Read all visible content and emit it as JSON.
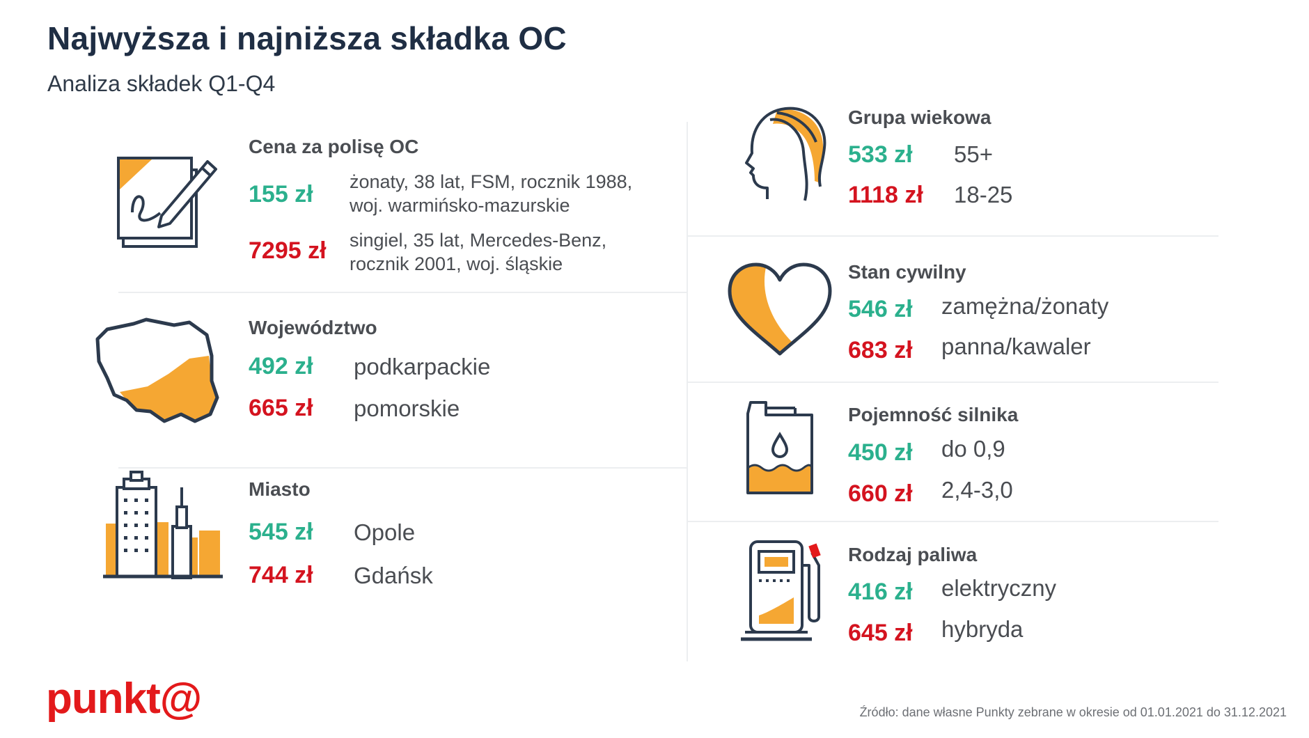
{
  "header": {
    "title": "Najwyższa i najniższa składka OC",
    "subtitle": "Analiza składek Q1-Q4"
  },
  "colors": {
    "accent": "#f5a733",
    "low": "#2bb08d",
    "high": "#d4131f",
    "outline": "#2c3a4d",
    "brand": "#e3191b"
  },
  "left": {
    "price": {
      "title": "Cena za polisę OC",
      "low_value": "155 zł",
      "low_desc_1": "żonaty, 38 lat, FSM, rocznik 1988,",
      "low_desc_2": "woj. warmińsko-mazurskie",
      "high_value": "7295 zł",
      "high_desc_1": "singiel, 35 lat, Mercedes-Benz,",
      "high_desc_2": "rocznik 2001, woj. śląskie",
      "icon": "contract-signature-icon"
    },
    "voivodeship": {
      "title": "Województwo",
      "low_value": "492 zł",
      "low_desc": "podkarpackie",
      "high_value": "665 zł",
      "high_desc": "pomorskie",
      "icon": "poland-map-icon"
    },
    "city": {
      "title": "Miasto",
      "low_value": "545 zł",
      "low_desc": "Opole",
      "high_value": "744 zł",
      "high_desc": "Gdańsk",
      "icon": "city-buildings-icon"
    }
  },
  "right": {
    "age": {
      "title": "Grupa wiekowa",
      "low_value": "533 zł",
      "low_desc": "55+",
      "high_value": "1118 zł",
      "high_desc": "18-25",
      "icon": "head-profile-icon"
    },
    "marital": {
      "title": "Stan cywilny",
      "low_value": "546 zł",
      "low_desc": "zamężna/żonaty",
      "high_value": "683 zł",
      "high_desc": "panna/kawaler",
      "icon": "heart-icon"
    },
    "engine": {
      "title": "Pojemność silnika",
      "low_value": "450 zł",
      "low_desc": "do 0,9",
      "high_value": "660 zł",
      "high_desc": "2,4-3,0",
      "icon": "oil-canister-icon"
    },
    "fuel": {
      "title": "Rodzaj paliwa",
      "low_value": "416 zł",
      "low_desc": "elektryczny",
      "high_value": "645 zł",
      "high_desc": "hybryda",
      "icon": "fuel-pump-icon"
    }
  },
  "footer": {
    "logo": "punkt@",
    "source": "Źródło: dane własne Punkty zebrane w okresie od 01.01.2021 do 31.12.2021"
  }
}
